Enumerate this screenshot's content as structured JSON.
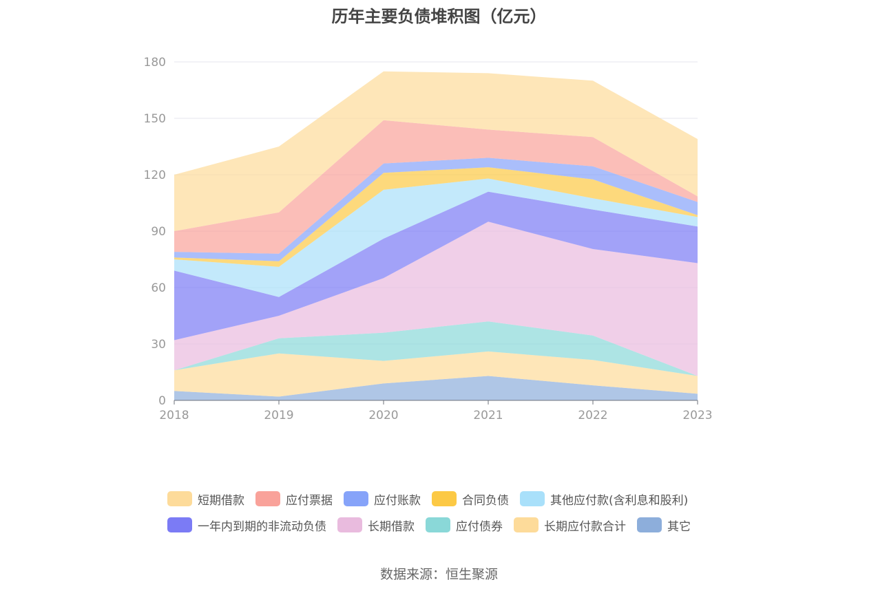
{
  "chart_data": {
    "type": "area",
    "title": "历年主要负债堆积图（亿元）",
    "x": [
      "2018",
      "2019",
      "2020",
      "2021",
      "2022",
      "2023"
    ],
    "y_ticks": [
      "0",
      "30",
      "60",
      "90",
      "120",
      "150",
      "180"
    ],
    "ylim": [
      0,
      180
    ],
    "grid": true,
    "legend_position": "bottom",
    "stacked": true,
    "series": [
      {
        "name": "其它",
        "color": "#8DAEDB",
        "values": [
          5,
          2,
          9,
          13,
          8,
          3.5
        ]
      },
      {
        "name": "长期应付款合计",
        "color": "#FDDB9A",
        "values": [
          11,
          23,
          12,
          13,
          13.5,
          9.5
        ]
      },
      {
        "name": "应付债券",
        "color": "#8AD8D8",
        "values": [
          0,
          8,
          15,
          16,
          13,
          0
        ]
      },
      {
        "name": "长期借款",
        "color": "#E9BBDE",
        "values": [
          16,
          12,
          29,
          53,
          46,
          60
        ]
      },
      {
        "name": "一年内到期的非流动负债",
        "color": "#7B7BF5",
        "values": [
          37,
          10,
          21,
          16,
          21,
          19.5
        ]
      },
      {
        "name": "其他应付款(含利息和股利)",
        "color": "#A9E0FA",
        "values": [
          6,
          16,
          26,
          7,
          6,
          5
        ]
      },
      {
        "name": "合同负债",
        "color": "#FCC945",
        "values": [
          1,
          3,
          9,
          6,
          10,
          1
        ]
      },
      {
        "name": "应付账款",
        "color": "#86A3F9",
        "values": [
          3,
          4,
          5,
          5,
          7,
          7
        ]
      },
      {
        "name": "应付票据",
        "color": "#F9A29A",
        "values": [
          11,
          22,
          23,
          15,
          15.5,
          3
        ]
      },
      {
        "name": "短期借款",
        "color": "#FDDB9A",
        "values": [
          30,
          35,
          26,
          30,
          30,
          30.5
        ]
      }
    ]
  },
  "legend": [
    [
      "短期借款",
      "应付票据",
      "应付账款",
      "合同负债",
      "其他应付款(含利息和股利)"
    ],
    [
      "一年内到期的非流动负债",
      "长期借款",
      "应付债券",
      "长期应付款合计",
      "其它"
    ]
  ],
  "source": "数据来源：恒生聚源"
}
